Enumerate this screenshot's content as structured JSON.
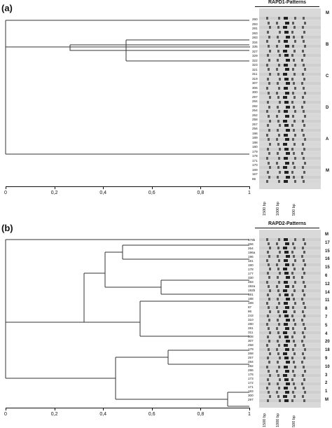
{
  "panels": [
    {
      "label": "(a)",
      "patterns_title": "RAPD1-Patterns",
      "axis_ticks": [
        "0",
        "0,2",
        "0,4",
        "0,6",
        "0,8",
        "1"
      ],
      "samples": [
        "260",
        "293",
        "281",
        "283",
        "283",
        "334",
        "335",
        "327",
        "329",
        "322",
        "323",
        "321",
        "311",
        "319",
        "307",
        "306",
        "300",
        "297",
        "284",
        "282",
        "264",
        "262",
        "258",
        "257",
        "256",
        "196",
        "189",
        "188",
        "180",
        "179",
        "178",
        "171",
        "170",
        "169",
        "167",
        "86"
      ],
      "groups": [
        "M",
        "B",
        "C",
        "D",
        "A",
        "M"
      ],
      "bp_markers": [
        "1500 bp",
        "1000 bp",
        "500 bp"
      ]
    },
    {
      "label": "(b)",
      "patterns_title": "RAPD2-Patterns",
      "axis_ticks": [
        "0",
        "0,2",
        "0,4",
        "0,6",
        "0,8",
        "1"
      ],
      "samples": [
        "179b",
        "266",
        "264",
        "196a",
        "196",
        "181",
        "180",
        "178",
        "177",
        "330",
        "283",
        "192a",
        "192b",
        "191",
        "188",
        "189",
        "87",
        "86",
        "243",
        "310",
        "280",
        "281",
        "311",
        "308",
        "307",
        "258",
        "179",
        "268",
        "257",
        "284",
        "282",
        "286",
        "176",
        "173",
        "172",
        "171",
        "183",
        "300",
        "297"
      ],
      "groups": [
        "M",
        "17",
        "15",
        "16",
        "15",
        "6",
        "12",
        "14",
        "11",
        "8",
        "7",
        "5",
        "4",
        "20",
        "18",
        "9",
        "10",
        "3",
        "2",
        "1",
        "M"
      ],
      "bp_markers": [
        "1500 bp",
        "1000 bp",
        "500 bp"
      ]
    }
  ]
}
